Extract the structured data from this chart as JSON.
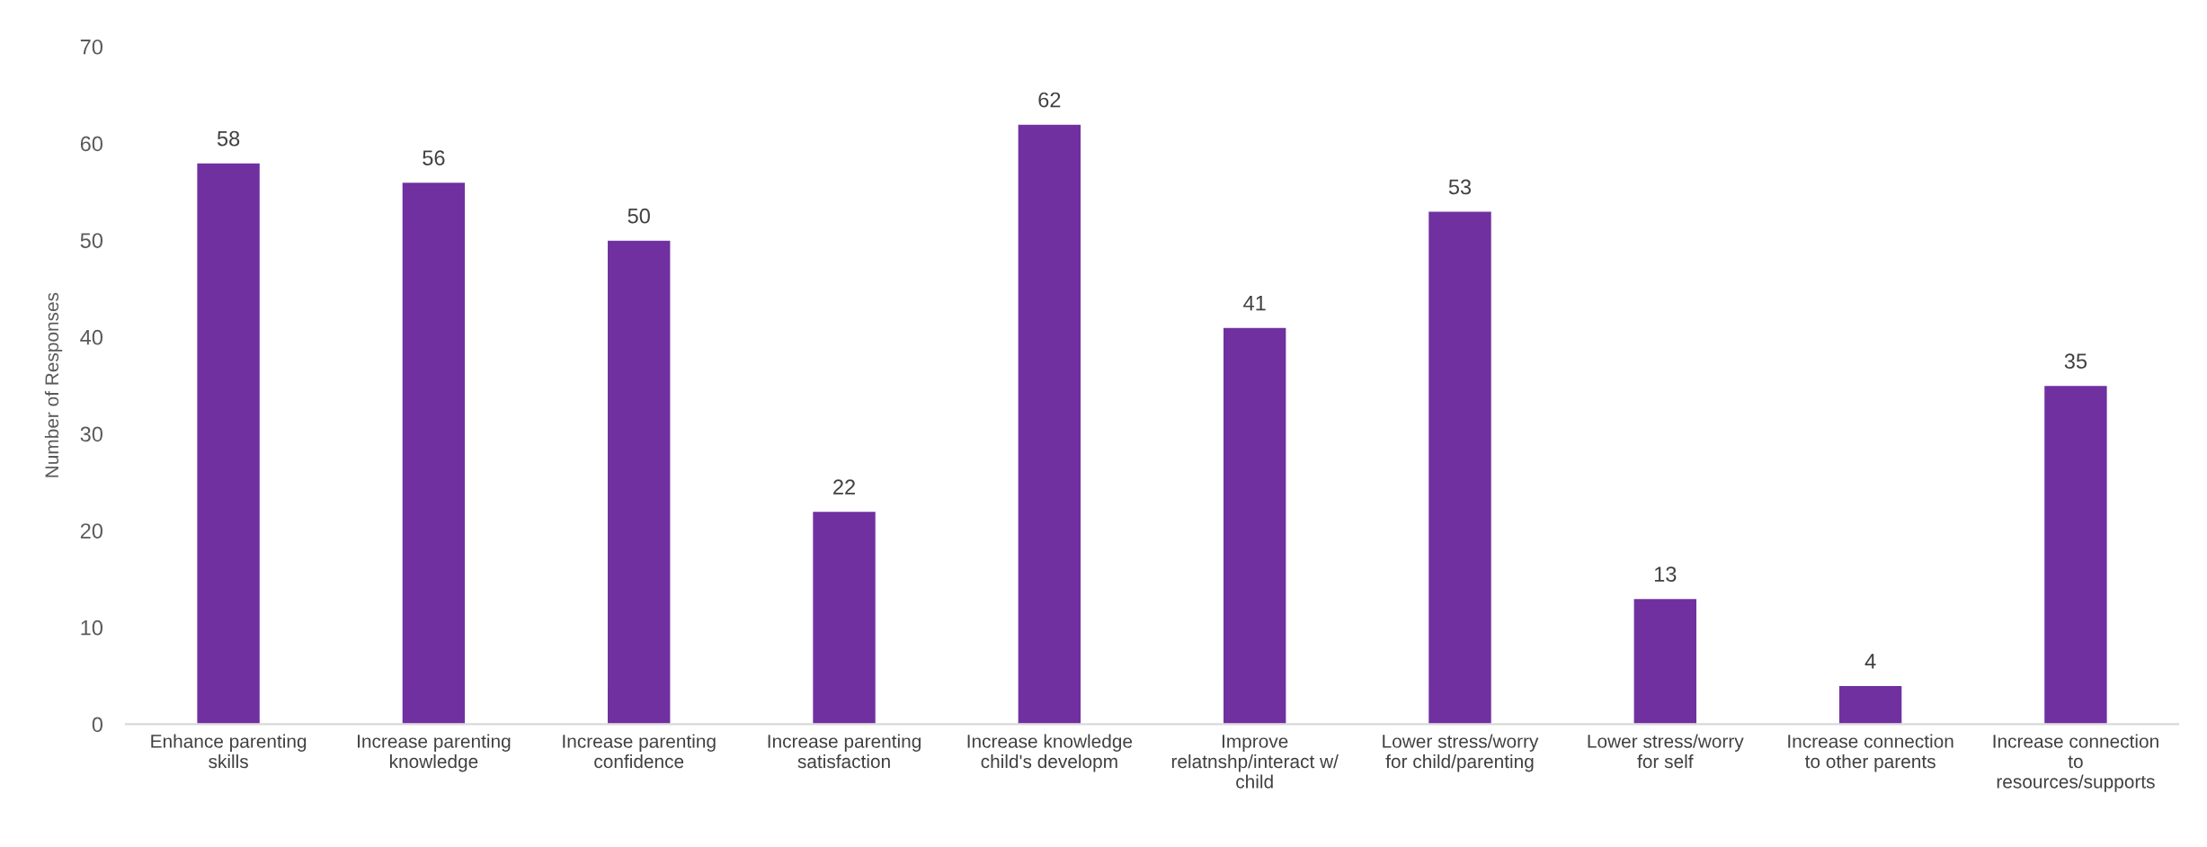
{
  "chart_data": {
    "type": "bar",
    "ylabel": "Number of Responses",
    "categories": [
      "Enhance parenting\nskills",
      "Increase parenting\nknowledge",
      "Increase parenting\nconfidence",
      "Increase parenting\nsatisfaction",
      "Increase knowledge\nchild's developm",
      "Improve\nrelatnshp/interact w/\nchild",
      "Lower stress/worry\nfor child/parenting",
      "Lower stress/worry\nfor self",
      "Increase connection\nto other parents",
      "Increase connection\nto\nresources/supports"
    ],
    "values": [
      58,
      56,
      50,
      22,
      62,
      41,
      53,
      13,
      4,
      35
    ],
    "color": "#7030a0",
    "data_labels": true,
    "grid": false,
    "ylim": [
      0,
      70
    ],
    "yticks": [
      0,
      10,
      20,
      30,
      40,
      50,
      60,
      70
    ]
  }
}
